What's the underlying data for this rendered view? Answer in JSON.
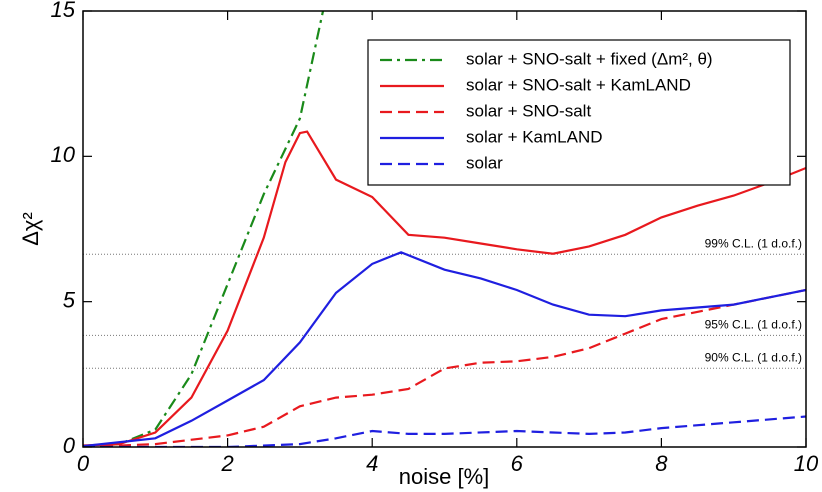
{
  "chart_data": {
    "type": "line",
    "xlabel": "noise [%]",
    "ylabel": "Δχ²",
    "xlim": [
      0,
      10
    ],
    "ylim": [
      0,
      15
    ],
    "xticks": [
      0,
      2,
      4,
      6,
      8,
      10
    ],
    "yticks": [
      0,
      5,
      10,
      15
    ],
    "legend": "upper right",
    "reference_lines": [
      {
        "value": 6.63,
        "label": "99% C.L. (1 d.o.f.)"
      },
      {
        "value": 3.84,
        "label": "95% C.L. (1 d.o.f.)"
      },
      {
        "value": 2.71,
        "label": "90% C.L. (1 d.o.f.)"
      }
    ],
    "series": [
      {
        "name": "solar + SNO-salt + fixed (Δm², θ)",
        "color": "#1a8a1a",
        "dash": "dashdot",
        "x": [
          0,
          0.5,
          1,
          1.5,
          2,
          2.5,
          3,
          3.32
        ],
        "values": [
          0,
          0.1,
          0.6,
          2.5,
          5.6,
          8.7,
          11.3,
          15
        ]
      },
      {
        "name": "solar + SNO-salt + KamLAND",
        "color": "#e8191e",
        "dash": "solid",
        "x": [
          0,
          0.5,
          1,
          1.5,
          2,
          2.5,
          2.8,
          3,
          3.1,
          3.5,
          4,
          4.5,
          5,
          5.5,
          6,
          6.5,
          7,
          7.5,
          8,
          8.5,
          9,
          9.5,
          10
        ],
        "values": [
          0.05,
          0.1,
          0.5,
          1.7,
          4.0,
          7.2,
          9.8,
          10.8,
          10.85,
          9.2,
          8.6,
          7.3,
          7.2,
          7.0,
          6.8,
          6.65,
          6.9,
          7.3,
          7.9,
          8.3,
          8.65,
          9.1,
          9.6
        ]
      },
      {
        "name": "solar + SNO-salt",
        "color": "#e8191e",
        "dash": "dashed",
        "x": [
          0,
          1,
          2,
          2.5,
          3,
          3.5,
          4,
          4.5,
          5,
          5.5,
          6,
          6.5,
          7,
          7.5,
          8,
          9,
          10
        ],
        "values": [
          0,
          0.1,
          0.4,
          0.7,
          1.4,
          1.7,
          1.8,
          2.0,
          2.7,
          2.9,
          2.95,
          3.1,
          3.4,
          3.9,
          4.4,
          4.9,
          5.4
        ]
      },
      {
        "name": "solar + KamLAND",
        "color": "#1f1fe0",
        "dash": "solid",
        "x": [
          0,
          1,
          1.5,
          2,
          2.5,
          3,
          3.5,
          4,
          4.4,
          5,
          5.5,
          6,
          6.5,
          7,
          7.5,
          8,
          9,
          10
        ],
        "values": [
          0.03,
          0.3,
          0.9,
          1.6,
          2.3,
          3.6,
          5.3,
          6.3,
          6.7,
          6.1,
          5.8,
          5.4,
          4.9,
          4.55,
          4.5,
          4.7,
          4.9,
          5.4
        ]
      },
      {
        "name": "solar",
        "color": "#1f1fe0",
        "dash": "dashed",
        "x": [
          0,
          2,
          3,
          3.5,
          4,
          4.5,
          5,
          6,
          6.5,
          7,
          7.5,
          8,
          9,
          10
        ],
        "values": [
          0,
          0,
          0.1,
          0.3,
          0.55,
          0.45,
          0.45,
          0.55,
          0.5,
          0.45,
          0.5,
          0.65,
          0.85,
          1.05
        ]
      }
    ]
  }
}
